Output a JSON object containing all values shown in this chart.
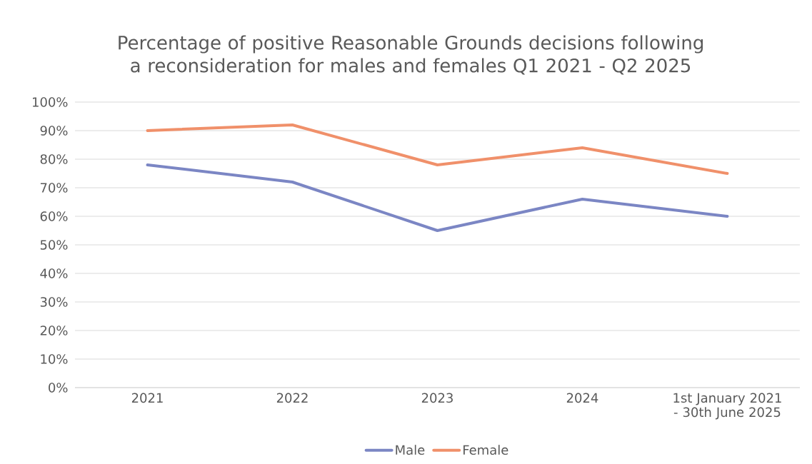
{
  "chart_data": {
    "type": "line",
    "title": "Percentage of positive Reasonable Grounds decisions following a reconsideration for males and females Q1 2021 - Q2 2025",
    "categories": [
      "2021",
      "2022",
      "2023",
      "2024",
      "1st January 2021 - 30th June 2025"
    ],
    "series": [
      {
        "name": "Male",
        "color": "#7b86c4",
        "values": [
          78,
          72,
          55,
          66,
          60
        ]
      },
      {
        "name": "Female",
        "color": "#f0906a",
        "values": [
          90,
          92,
          78,
          84,
          75
        ]
      }
    ],
    "ylim": [
      0,
      100
    ],
    "yticks": [
      {
        "value": 0,
        "label": "0%"
      },
      {
        "value": 10,
        "label": "10%"
      },
      {
        "value": 20,
        "label": "20%"
      },
      {
        "value": 30,
        "label": "30%"
      },
      {
        "value": 40,
        "label": "40%"
      },
      {
        "value": 50,
        "label": "50%"
      },
      {
        "value": 60,
        "label": "60%"
      },
      {
        "value": 70,
        "label": "70%"
      },
      {
        "value": 80,
        "label": "80%"
      },
      {
        "value": 90,
        "label": "90%"
      },
      {
        "value": 100,
        "label": "100%"
      }
    ],
    "grid": "y",
    "legend": "bottom",
    "marker": "none",
    "line_style": "solid"
  }
}
